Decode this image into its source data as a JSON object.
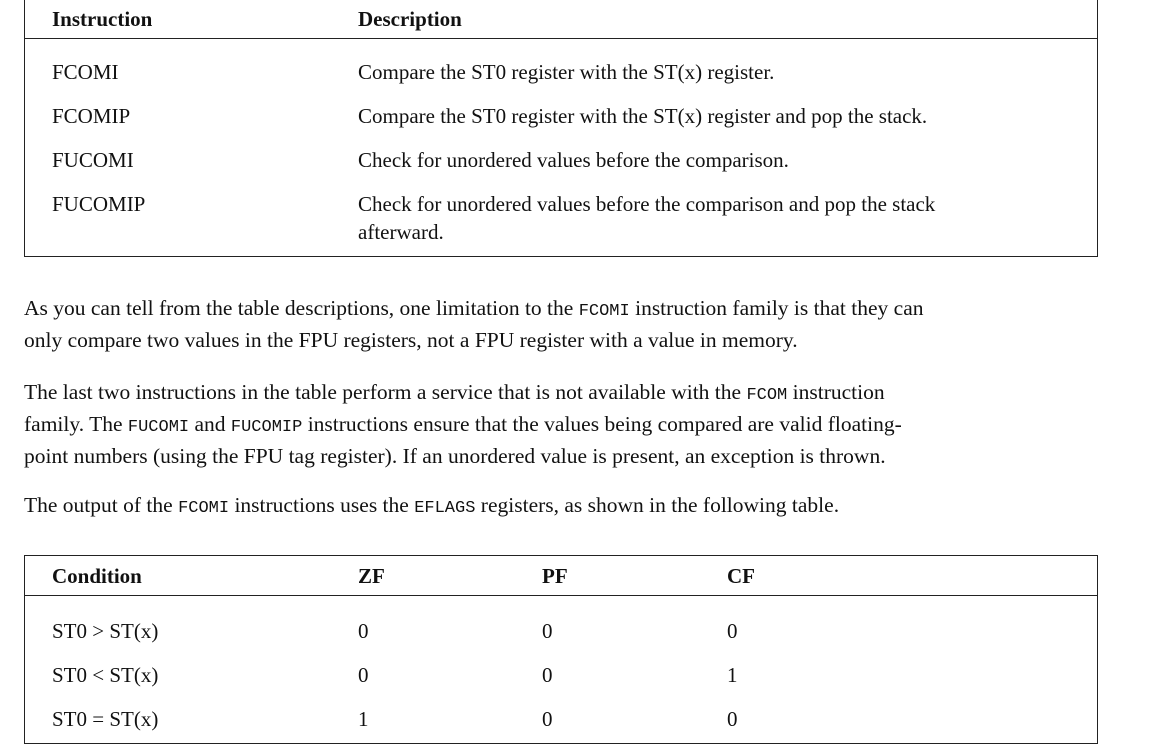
{
  "table1": {
    "headers": [
      "Instruction",
      "Description"
    ],
    "rows": [
      {
        "instruction": "FCOMI",
        "description": "Compare the ST0 register with the ST(x) register."
      },
      {
        "instruction": "FCOMIP",
        "description": "Compare the ST0 register with the ST(x) register and pop the stack."
      },
      {
        "instruction": "FUCOMI",
        "description": "Check for unordered values before the comparison."
      },
      {
        "instruction": "FUCOMIP",
        "description": "Check for unordered values before the comparison and pop the stack",
        "description_cont": "afterward."
      }
    ]
  },
  "paragraphs": {
    "p1": {
      "t1": "As you can tell from the table descriptions, one limitation to the ",
      "c1": "FCOMI",
      "t2": " instruction family is that they can",
      "line2": "only compare two values in the FPU registers, not a FPU register with a value in memory."
    },
    "p2": {
      "t1": "The last two instructions in the table perform a service that is not available with the ",
      "c1": "FCOM",
      "t2": " instruction",
      "t3": "family. The ",
      "c2": "FUCOMI",
      "t4": " and ",
      "c3": "FUCOMIP",
      "t5": " instructions ensure that the values being compared are valid floating-",
      "line3": "point numbers (using the FPU tag register). If an unordered value is present, an exception is thrown."
    },
    "p3": {
      "t1": "The output of the ",
      "c1": "FCOMI",
      "t2": " instructions uses the ",
      "c2": "EFLAGS",
      "t3": " registers, as shown in the following table."
    }
  },
  "table2": {
    "headers": [
      "Condition",
      "ZF",
      "PF",
      "CF"
    ],
    "rows": [
      {
        "condition": "ST0 > ST(x)",
        "zf": "0",
        "pf": "0",
        "cf": "0"
      },
      {
        "condition": "ST0 < ST(x)",
        "zf": "0",
        "pf": "0",
        "cf": "1"
      },
      {
        "condition": "ST0 = ST(x)",
        "zf": "1",
        "pf": "0",
        "cf": "0"
      }
    ]
  }
}
